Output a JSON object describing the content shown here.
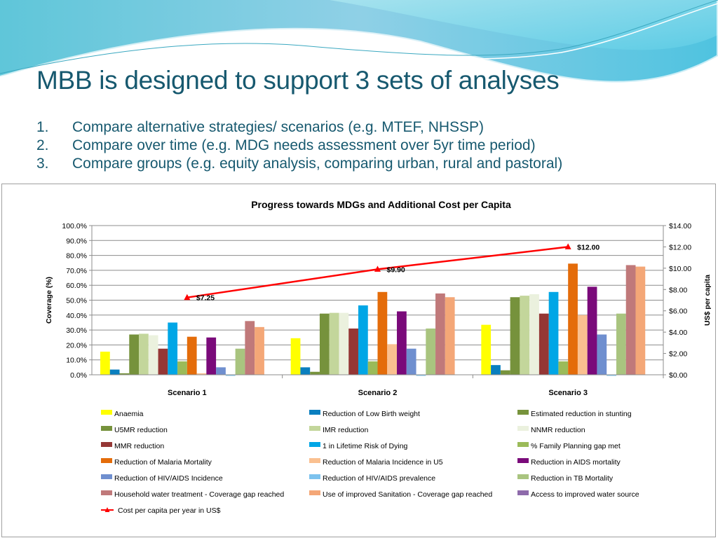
{
  "slide": {
    "title": "MBB is designed to support 3 sets of analyses",
    "bullets": [
      {
        "num": "1.",
        "text": "Compare alternative strategies/ scenarios (e.g. MTEF, NHSSP)"
      },
      {
        "num": "2.",
        "text": "Compare over time (e.g. MDG needs assessment over 5yr time period)"
      },
      {
        "num": "3.",
        "text": "Compare groups (e.g. equity analysis, comparing urban, rural and pastoral)"
      }
    ]
  },
  "chart_data": {
    "type": "bar",
    "title": "Progress towards MDGs and Additional Cost per Capita",
    "categories": [
      "Scenario 1",
      "Scenario 2",
      "Scenario 3"
    ],
    "ylabel": "Coverage (%)",
    "y2label": "US$ per capita",
    "ylim": [
      0,
      100
    ],
    "y2lim": [
      0,
      14
    ],
    "yticks": [
      "0.0%",
      "10.0%",
      "20.0%",
      "30.0%",
      "40.0%",
      "50.0%",
      "60.0%",
      "70.0%",
      "80.0%",
      "90.0%",
      "100.0%"
    ],
    "y2ticks": [
      "$0.00",
      "$2.00",
      "$4.00",
      "$6.00",
      "$8.00",
      "$10.00",
      "$12.00",
      "$14.00"
    ],
    "grid": true,
    "legend_position": "bottom",
    "series": [
      {
        "name": "Anaemia",
        "color": "#ffff00",
        "values": [
          15.5,
          24.5,
          33.5
        ]
      },
      {
        "name": "Reduction of Low Birth weight",
        "color": "#0a7fbf",
        "values": [
          3.5,
          5.0,
          6.5
        ]
      },
      {
        "name": "Estimated reduction in stunting",
        "color": "#77933c",
        "values": [
          1.0,
          2.0,
          3.0
        ]
      },
      {
        "name": "U5MR reduction",
        "color": "#76923c",
        "values": [
          27.0,
          41.0,
          52.0
        ]
      },
      {
        "name": "IMR reduction",
        "color": "#c3d69b",
        "values": [
          27.5,
          41.5,
          53.0
        ]
      },
      {
        "name": "NNMR reduction",
        "color": "#ebf1de",
        "values": [
          26.5,
          41.5,
          54.0
        ]
      },
      {
        "name": "MMR reduction",
        "color": "#953735",
        "values": [
          17.5,
          31.0,
          41.0
        ]
      },
      {
        "name": "1 in Lifetime Risk of Dying",
        "color": "#00a6e6",
        "values": [
          35.0,
          46.5,
          55.5
        ]
      },
      {
        "name": "% Family Planning gap met",
        "color": "#9bbb59",
        "values": [
          9.0,
          9.0,
          9.0
        ]
      },
      {
        "name": "Reduction of Malaria Mortality",
        "color": "#e46c0a",
        "values": [
          25.5,
          55.5,
          74.5
        ]
      },
      {
        "name": "Reduction of Malaria  Incidence in U5",
        "color": "#fac090",
        "values": [
          1.0,
          20.5,
          40.0
        ]
      },
      {
        "name": "Reduction in AIDS mortality",
        "color": "#7a0a7a",
        "values": [
          25.0,
          42.5,
          59.0
        ]
      },
      {
        "name": "Reduction of HIV/AIDS  Incidence",
        "color": "#6f8fcf",
        "values": [
          5.0,
          17.5,
          27.0
        ]
      },
      {
        "name": "Reduction of HIV/AIDS  prevalence",
        "color": "#7cc2ee",
        "values": [
          -0.5,
          -0.5,
          -0.5
        ]
      },
      {
        "name": "Reduction in TB Mortality",
        "color": "#a9c47f",
        "values": [
          17.5,
          31.0,
          41.0
        ]
      },
      {
        "name": "Household water  treatment - Coverage gap reached",
        "color": "#c0797a",
        "values": [
          36.0,
          54.5,
          73.5
        ]
      },
      {
        "name": "Use of improved Sanitation  - Coverage gap reached",
        "color": "#f4a777",
        "values": [
          32.0,
          52.0,
          72.5
        ]
      },
      {
        "name": "Access to improved water source",
        "color": "#8e6bab",
        "values": [
          0,
          0,
          0
        ]
      }
    ],
    "line_series": {
      "name": "Cost per capita per year in US$",
      "color": "#ff0000",
      "axis": "right",
      "values": [
        7.25,
        9.9,
        12.0
      ],
      "labels": [
        "$7.25",
        "$9.90",
        "$12.00"
      ]
    }
  }
}
